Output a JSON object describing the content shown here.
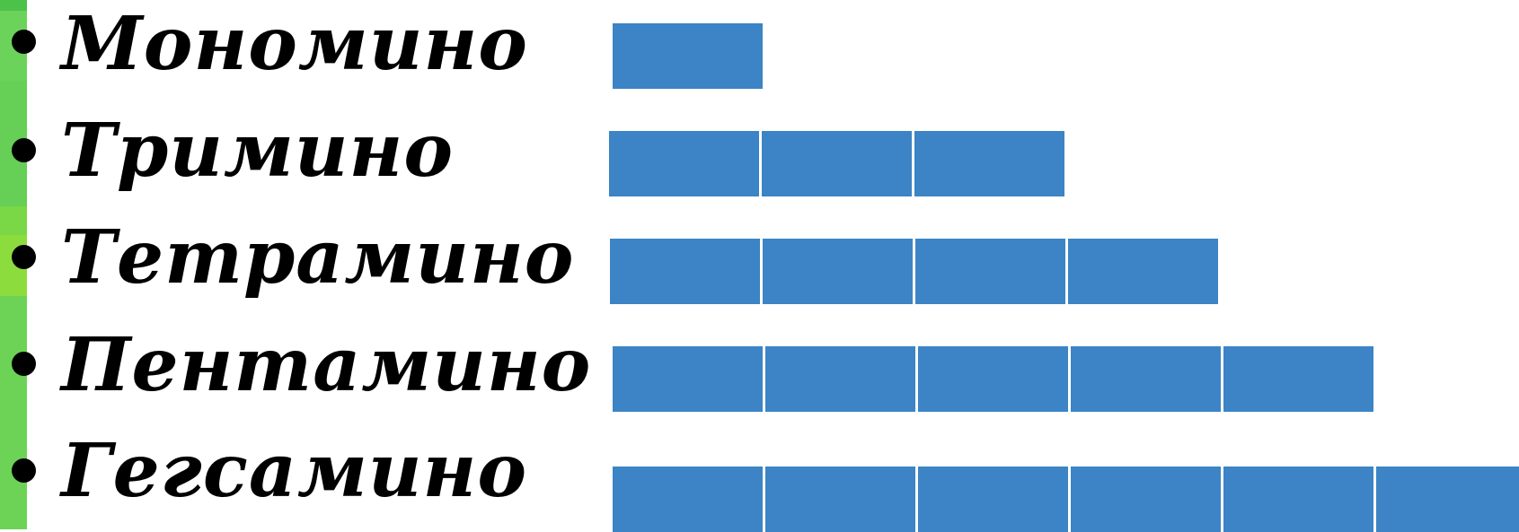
{
  "accent_color": "#3c84c5",
  "items": [
    {
      "label": "Мономино",
      "squares": 1
    },
    {
      "label": "Тримино",
      "squares": 3
    },
    {
      "label": "Тетрамино",
      "squares": 4
    },
    {
      "label": "Пентамино",
      "squares": 5
    },
    {
      "label": "Гегсамино",
      "squares": 6
    }
  ]
}
